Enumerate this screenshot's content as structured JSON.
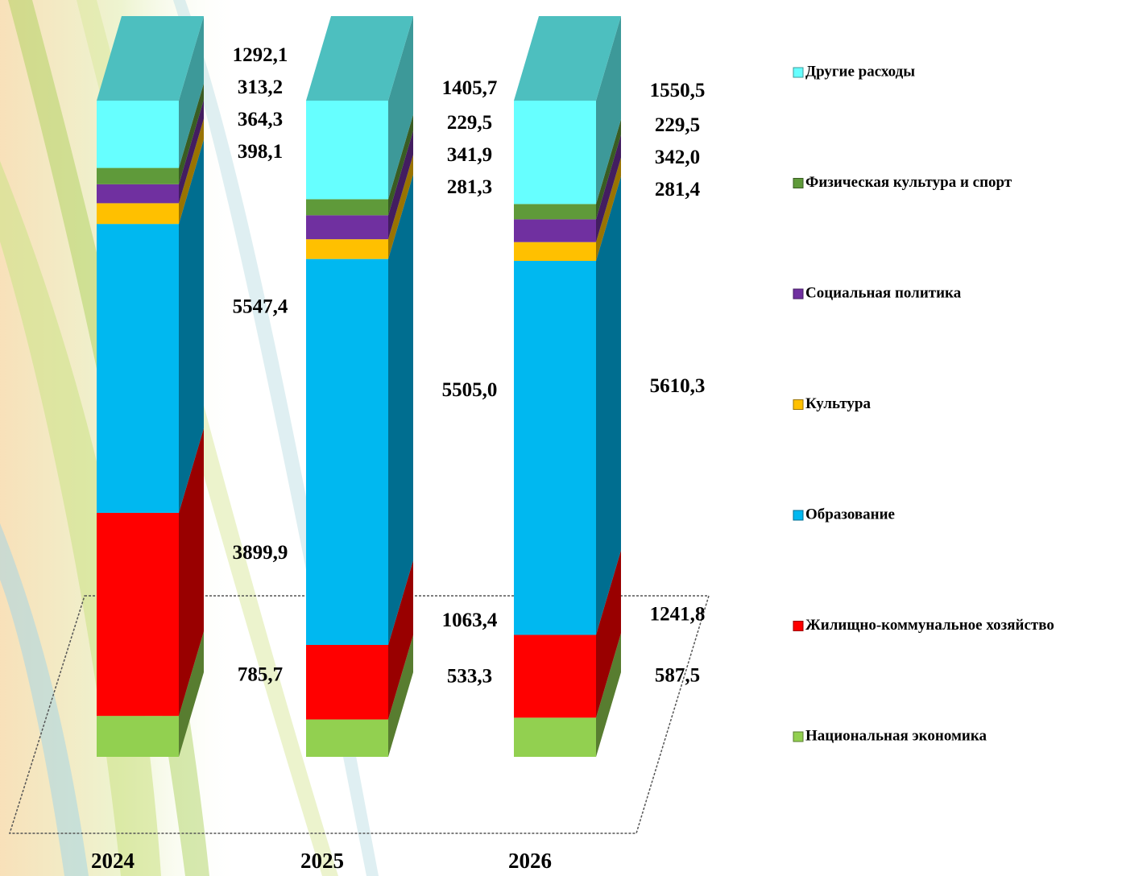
{
  "chart_data": {
    "type": "bar",
    "stacked": "percent",
    "categories": [
      "2024",
      "2025",
      "2026"
    ],
    "legend": "right",
    "series": [
      {
        "name": "Национальная экономика",
        "color": "#92d050",
        "values": [
          785.7,
          533.3,
          587.5
        ],
        "value_labels": [
          "785,7",
          "533,3",
          "587,5"
        ]
      },
      {
        "name": "Жилищно-коммунальное хозяйство",
        "color": "#ff0000",
        "values": [
          3899.9,
          1063.4,
          1241.8
        ],
        "value_labels": [
          "3899,9",
          "1063,4",
          "1241,8"
        ]
      },
      {
        "name": "Образование",
        "color": "#00b8f0",
        "values": [
          5547.4,
          5505.0,
          5610.3
        ],
        "value_labels": [
          "5547,4",
          "5505,0",
          "5610,3"
        ]
      },
      {
        "name": "Культура",
        "color": "#ffc000",
        "values": [
          398.1,
          281.3,
          281.4
        ],
        "value_labels": [
          "398,1",
          "281,3",
          "281,4"
        ]
      },
      {
        "name": "Социальная политика",
        "color": "#7030a0",
        "values": [
          364.3,
          341.9,
          342.0
        ],
        "value_labels": [
          "364,3",
          "341,9",
          "342,0"
        ]
      },
      {
        "name": "Физическая культура и спорт",
        "color": "#5f9a3a",
        "values": [
          313.2,
          229.5,
          229.5
        ],
        "value_labels": [
          "313,2",
          "229,5",
          "229,5"
        ]
      },
      {
        "name": "Другие расходы",
        "color": "#66ffff",
        "values": [
          1292.1,
          1405.7,
          1550.5
        ],
        "value_labels": [
          "1292,1",
          "1405,7",
          "1550,5"
        ]
      }
    ]
  }
}
